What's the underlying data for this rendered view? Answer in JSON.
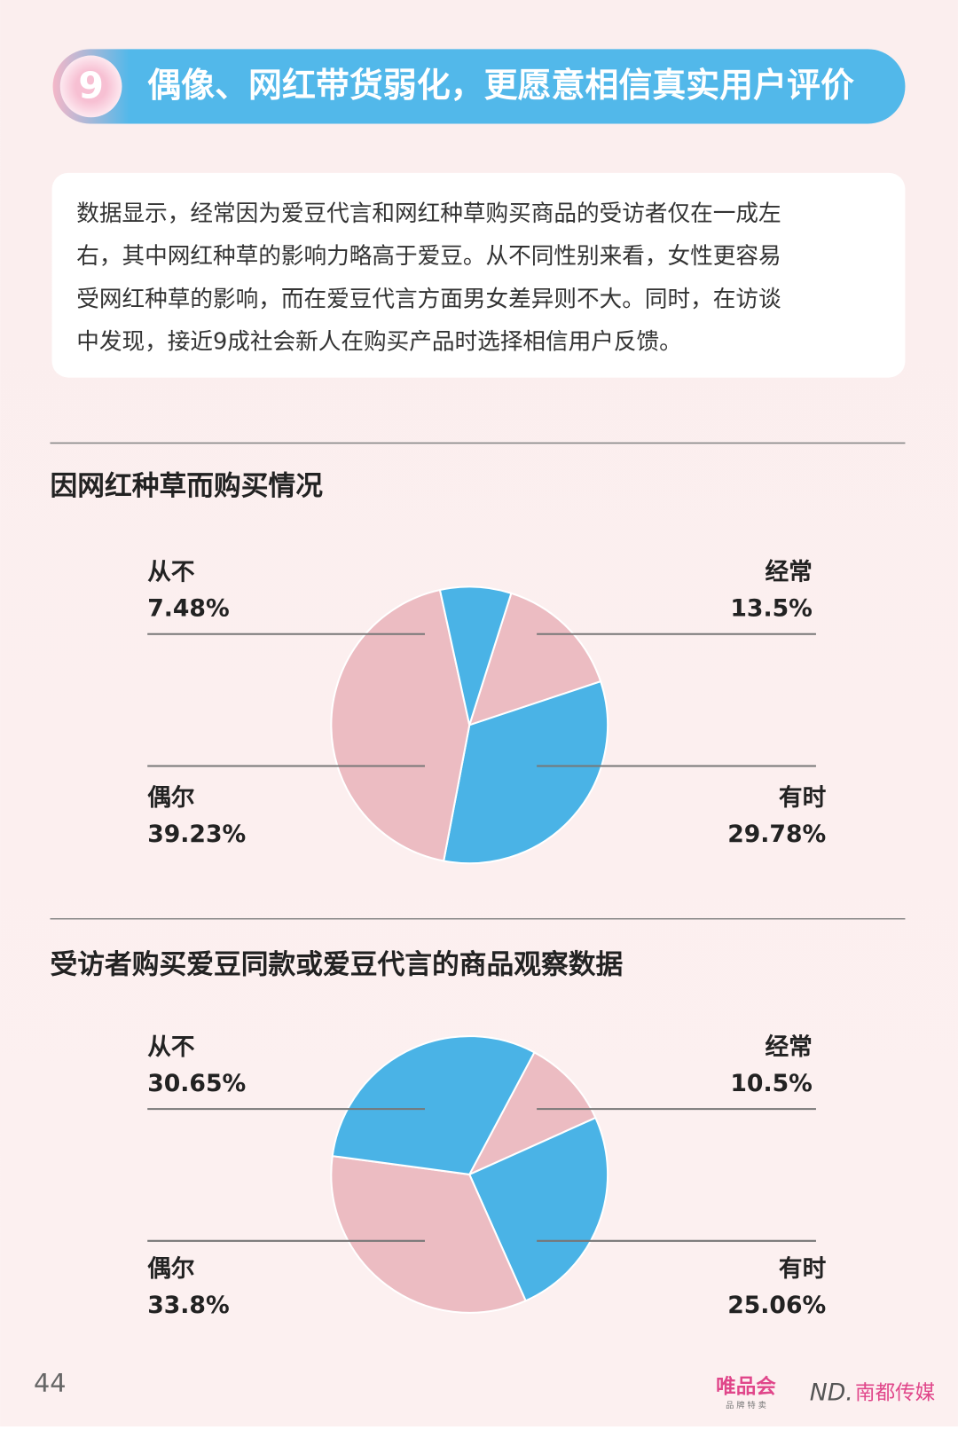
{
  "header": {
    "number": "9",
    "title": "偶像、网红带货弱化，更愿意相信真实用户评价"
  },
  "paragraph": [
    "数据显示，经常因为爱豆代言和网红种草购买商品的受访者仅在一成左",
    "右，其中网红种草的影响力略高于爱豆。从不同性别来看，女性更容易",
    "受网红种草的影响，而在爱豆代言方面男女差异则不大。同时，在访谈",
    "中发现，接近9成社会新人在购买产品时选择相信用户反馈。"
  ],
  "chart_data": [
    {
      "type": "pie",
      "title": "因网红种草而购买情况",
      "categories": [
        "经常",
        "有时",
        "偶尔",
        "从不"
      ],
      "values": [
        13.5,
        29.78,
        39.23,
        7.48
      ],
      "value_labels": [
        "13.5%",
        "29.78%",
        "39.23%",
        "7.48%"
      ],
      "colors": [
        "#ecbcc2",
        "#4ab3e6",
        "#ecbcc2",
        "#4ab3e6"
      ]
    },
    {
      "type": "pie",
      "title": "受访者购买爱豆同款或爱豆代言的商品观察数据",
      "categories": [
        "经常",
        "有时",
        "偶尔",
        "从不"
      ],
      "values": [
        10.5,
        25.06,
        33.8,
        30.65
      ],
      "value_labels": [
        "10.5%",
        "25.06%",
        "33.8%",
        "30.65%"
      ],
      "colors": [
        "#ecbcc2",
        "#4ab3e6",
        "#ecbcc2",
        "#4ab3e6"
      ]
    }
  ],
  "footer": {
    "page_number": "44",
    "logo1": "唯品会",
    "logo1_sub": "品 牌 特 卖",
    "logo2_mark": "ND.",
    "logo2": "南都传媒"
  }
}
